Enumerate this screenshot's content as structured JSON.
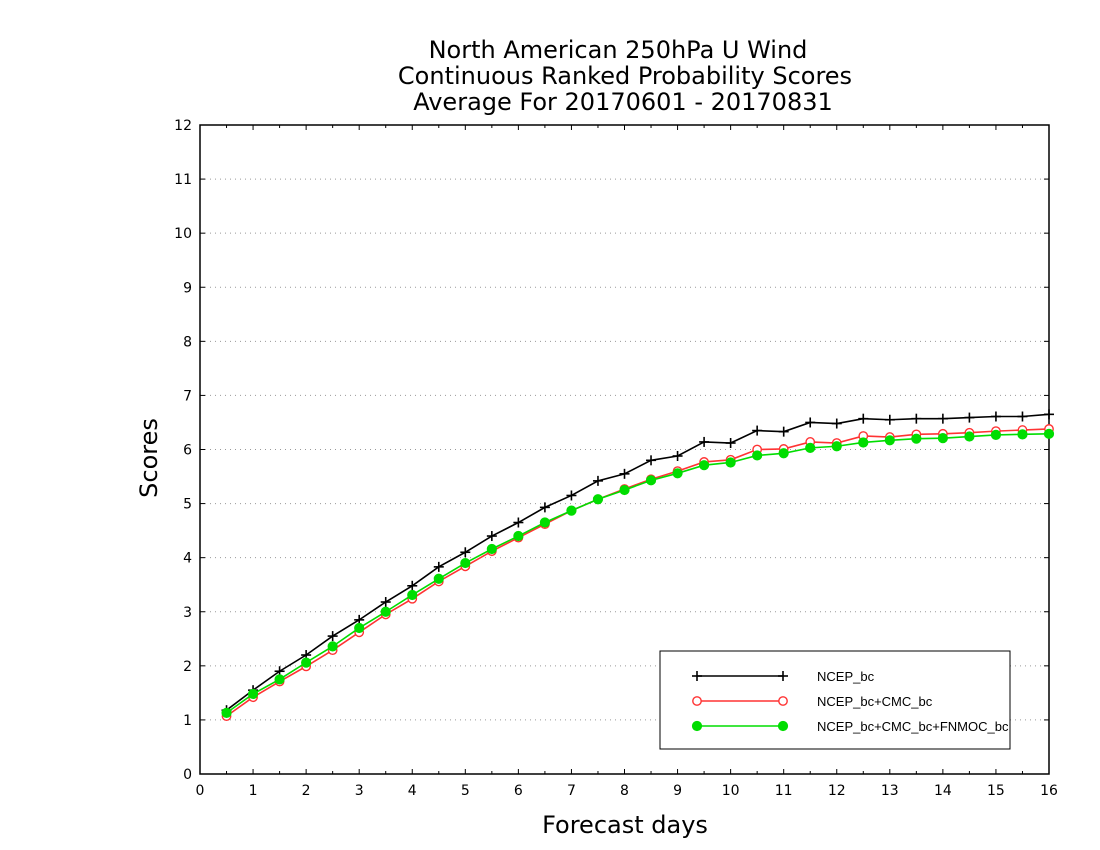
{
  "chart_data": {
    "type": "line",
    "title_lines": [
      "North American 250hPa U Wind",
      "Continuous Ranked Probability Scores",
      "Average For 20170601 - 20170831"
    ],
    "xlabel": "Forecast days",
    "ylabel": "Scores",
    "xlim": [
      0,
      16
    ],
    "ylim": [
      0,
      12
    ],
    "x_ticks": [
      "0",
      "1",
      "2",
      "3",
      "4",
      "5",
      "6",
      "7",
      "8",
      "9",
      "10",
      "11",
      "12",
      "13",
      "14",
      "15",
      "16"
    ],
    "y_ticks": [
      "0",
      "1",
      "2",
      "3",
      "4",
      "5",
      "6",
      "7",
      "8",
      "9",
      "10",
      "11",
      "12"
    ],
    "grid": "horizontal dotted",
    "legend_position": "bottom-right",
    "x": [
      0.5,
      1,
      1.5,
      2,
      2.5,
      3,
      3.5,
      4,
      4.5,
      5,
      5.5,
      6,
      6.5,
      7,
      7.5,
      8,
      8.5,
      9,
      9.5,
      10,
      10.5,
      11,
      11.5,
      12,
      12.5,
      13,
      13.5,
      14,
      14.5,
      15,
      15.5,
      16
    ],
    "series": [
      {
        "name": "NCEP_bc",
        "color": "#000000",
        "marker": "plus",
        "values": [
          1.18,
          1.55,
          1.9,
          2.2,
          2.55,
          2.85,
          3.18,
          3.48,
          3.83,
          4.1,
          4.4,
          4.65,
          4.93,
          5.15,
          5.42,
          5.55,
          5.8,
          5.88,
          6.14,
          6.12,
          6.35,
          6.33,
          6.5,
          6.48,
          6.57,
          6.55,
          6.57,
          6.57,
          6.59,
          6.61,
          6.61,
          6.65
        ]
      },
      {
        "name": "NCEP_bc+CMC_bc",
        "color": "#ff3333",
        "marker": "open-circle",
        "values": [
          1.07,
          1.42,
          1.71,
          1.99,
          2.29,
          2.62,
          2.95,
          3.24,
          3.56,
          3.84,
          4.12,
          4.37,
          4.62,
          4.87,
          5.08,
          5.27,
          5.45,
          5.6,
          5.77,
          5.81,
          6.0,
          6.01,
          6.14,
          6.12,
          6.25,
          6.23,
          6.28,
          6.29,
          6.31,
          6.34,
          6.36,
          6.38
        ]
      },
      {
        "name": "NCEP_bc+CMC_bc+FNMOC_bc",
        "color": "#00dd00",
        "marker": "filled-circle",
        "values": [
          1.13,
          1.48,
          1.75,
          2.06,
          2.36,
          2.7,
          3.0,
          3.31,
          3.61,
          3.9,
          4.16,
          4.4,
          4.65,
          4.87,
          5.08,
          5.25,
          5.43,
          5.56,
          5.71,
          5.76,
          5.89,
          5.93,
          6.03,
          6.06,
          6.13,
          6.17,
          6.2,
          6.21,
          6.24,
          6.27,
          6.28,
          6.29
        ]
      }
    ]
  }
}
